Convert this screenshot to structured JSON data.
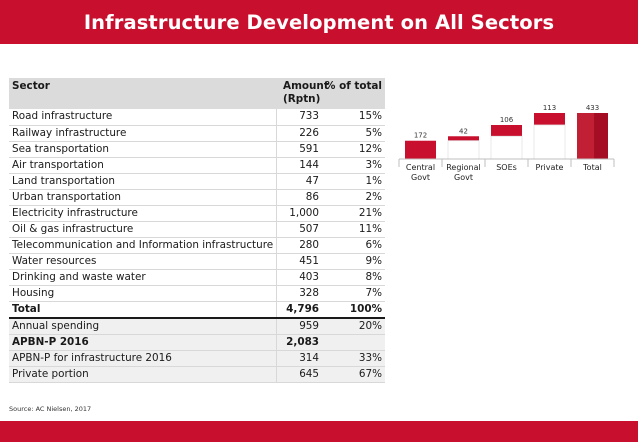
{
  "title": "Infrastructure Development on All Sectors",
  "source": "Source: AC Nielsen, 2017",
  "table": {
    "headers": [
      "Sector",
      "Amount (Rptn)",
      "% of total"
    ],
    "rows": [
      {
        "sector": "Road infrastructure",
        "amount": "733",
        "pct": "15%"
      },
      {
        "sector": "Railway infrastructure",
        "amount": "226",
        "pct": "5%"
      },
      {
        "sector": "Sea transportation",
        "amount": "591",
        "pct": "12%"
      },
      {
        "sector": "Air transportation",
        "amount": "144",
        "pct": "3%"
      },
      {
        "sector": "Land transportation",
        "amount": "47",
        "pct": "1%"
      },
      {
        "sector": "Urban transportation",
        "amount": "86",
        "pct": "2%"
      },
      {
        "sector": "Electricity infrastructure",
        "amount": "1,000",
        "pct": "21%"
      },
      {
        "sector": "Oil & gas infrastructure",
        "amount": "507",
        "pct": "11%"
      },
      {
        "sector": "Telecommunication and Information infrastructure",
        "amount": "280",
        "pct": "6%"
      },
      {
        "sector": "Water resources",
        "amount": "451",
        "pct": "9%"
      },
      {
        "sector": "Drinking and waste water",
        "amount": "403",
        "pct": "8%"
      },
      {
        "sector": "Housing",
        "amount": "328",
        "pct": "7%"
      },
      {
        "sector": "Total",
        "amount": "4,796",
        "pct": "100%",
        "bold": true
      },
      {
        "sector": "Annual spending",
        "amount": "959",
        "pct": "20%",
        "topline": true
      },
      {
        "sector": "APBN-P 2016",
        "amount": "2,083",
        "pct": "",
        "bold": true
      },
      {
        "sector": "APBN-P for infrastructure 2016",
        "amount": "314",
        "pct": "33%"
      },
      {
        "sector": "Private portion",
        "amount": "645",
        "pct": "67%"
      }
    ]
  },
  "chart_data": {
    "type": "bar",
    "subtype": "waterfall",
    "categories": [
      "Central Govt",
      "Regional Govt",
      "SOEs",
      "Private",
      "Total"
    ],
    "category_lines": [
      [
        "Central",
        "Govt"
      ],
      [
        "Regional",
        "Govt"
      ],
      [
        "SOEs"
      ],
      [
        "Private"
      ],
      [
        "Total"
      ]
    ],
    "values": [
      172,
      42,
      106,
      113,
      433
    ],
    "data_labels": [
      "172",
      "42",
      "106",
      "113",
      "433"
    ],
    "colors": {
      "bar": "#c8102e",
      "bar_dark": "#a50d24"
    },
    "title": "",
    "xlabel": "",
    "ylabel": ""
  }
}
